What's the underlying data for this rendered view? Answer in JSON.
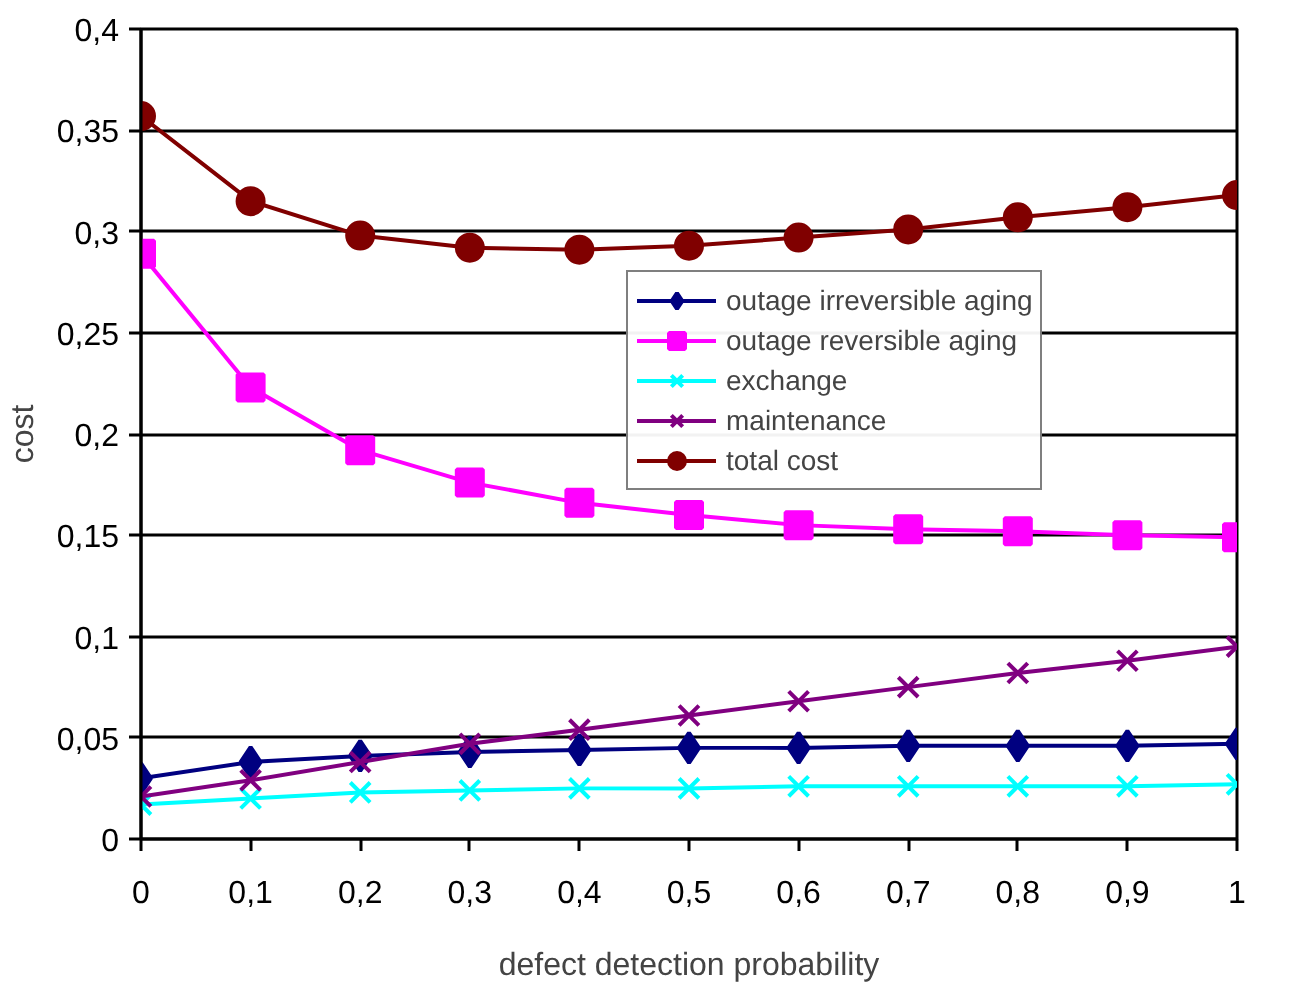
{
  "chart_data": {
    "type": "line",
    "xlabel": "defect detection probability",
    "ylabel": "cost",
    "x": [
      0,
      0.1,
      0.2,
      0.3,
      0.4,
      0.5,
      0.6,
      0.7,
      0.8,
      0.9,
      1
    ],
    "xlim": [
      0,
      1
    ],
    "ylim": [
      0,
      0.4
    ],
    "xticks": [
      {
        "value": 0,
        "label": "0"
      },
      {
        "value": 0.1,
        "label": "0,1"
      },
      {
        "value": 0.2,
        "label": "0,2"
      },
      {
        "value": 0.3,
        "label": "0,3"
      },
      {
        "value": 0.4,
        "label": "0,4"
      },
      {
        "value": 0.5,
        "label": "0,5"
      },
      {
        "value": 0.6,
        "label": "0,6"
      },
      {
        "value": 0.7,
        "label": "0,7"
      },
      {
        "value": 0.8,
        "label": "0,8"
      },
      {
        "value": 0.9,
        "label": "0,9"
      },
      {
        "value": 1,
        "label": "1"
      }
    ],
    "yticks": [
      {
        "value": 0,
        "label": "0"
      },
      {
        "value": 0.05,
        "label": "0,05"
      },
      {
        "value": 0.1,
        "label": "0,1"
      },
      {
        "value": 0.15,
        "label": "0,15"
      },
      {
        "value": 0.2,
        "label": "0,2"
      },
      {
        "value": 0.25,
        "label": "0,25"
      },
      {
        "value": 0.3,
        "label": "0,3"
      },
      {
        "value": 0.35,
        "label": "0,35"
      },
      {
        "value": 0.4,
        "label": "0,4"
      }
    ],
    "grid": "y",
    "legend": "right",
    "line_style": "solid",
    "series": [
      {
        "name": "outage irreversible aging",
        "color": "#000080",
        "marker": "diamond",
        "values": [
          0.03,
          0.038,
          0.041,
          0.043,
          0.044,
          0.045,
          0.045,
          0.046,
          0.046,
          0.046,
          0.047
        ]
      },
      {
        "name": "outage reversible aging",
        "color": "#ff00ff",
        "marker": "square",
        "values": [
          0.289,
          0.223,
          0.192,
          0.176,
          0.166,
          0.16,
          0.155,
          0.153,
          0.152,
          0.15,
          0.149
        ]
      },
      {
        "name": "exchange",
        "color": "#00ffff",
        "marker": "cross",
        "values": [
          0.017,
          0.02,
          0.023,
          0.024,
          0.025,
          0.025,
          0.026,
          0.026,
          0.026,
          0.026,
          0.027
        ]
      },
      {
        "name": "maintenance",
        "color": "#800080",
        "marker": "cross",
        "values": [
          0.021,
          0.029,
          0.038,
          0.047,
          0.054,
          0.061,
          0.068,
          0.075,
          0.082,
          0.088,
          0.095
        ]
      },
      {
        "name": "total cost",
        "color": "#800000",
        "marker": "circle",
        "values": [
          0.357,
          0.315,
          0.298,
          0.292,
          0.291,
          0.293,
          0.297,
          0.301,
          0.307,
          0.312,
          0.318
        ]
      }
    ]
  }
}
